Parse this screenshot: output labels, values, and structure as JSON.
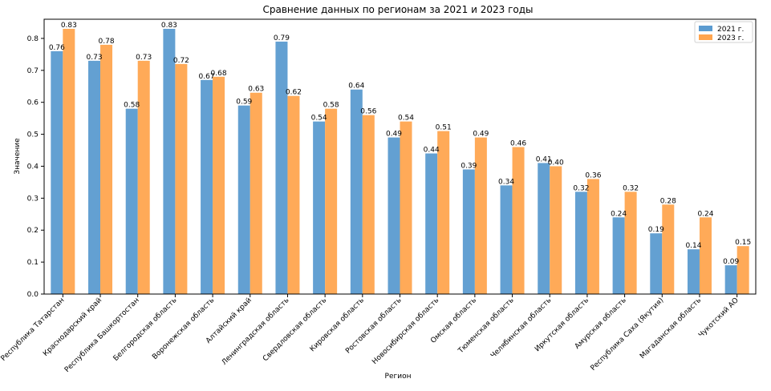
{
  "chart_data": {
    "type": "bar",
    "title": "Сравнение данных по регионам за 2021 и 2023 годы",
    "xlabel": "Регион",
    "ylabel": "Значение",
    "ylim": [
      0,
      0.86
    ],
    "yticks": [
      "0.0",
      "0.1",
      "0.2",
      "0.3",
      "0.4",
      "0.5",
      "0.6",
      "0.7",
      "0.8"
    ],
    "legend_position": "top-right",
    "grid": false,
    "categories": [
      "Республика Татарстан",
      "Краснодарский край",
      "Республика Башкортостан",
      "Белгородская область",
      "Воронежская область",
      "Алтайский край",
      "Ленинградская область",
      "Свердловская область",
      "Кировская область",
      "Ростовская область",
      "Новосибирская область",
      "Омская область",
      "Тюменская область",
      "Челябинская область",
      "Иркутская область",
      "Амурская область",
      "Республика Саха (Якутия)",
      "Магаданская область",
      "Чукотский АО"
    ],
    "series": [
      {
        "name": "2021 г.",
        "color": "#5b9bd0",
        "values": [
          0.76,
          0.73,
          0.58,
          0.83,
          0.67,
          0.59,
          0.79,
          0.54,
          0.64,
          0.49,
          0.44,
          0.39,
          0.34,
          0.41,
          0.32,
          0.24,
          0.19,
          0.14,
          0.09
        ]
      },
      {
        "name": "2023 г.",
        "color": "#ffa54f",
        "values": [
          0.83,
          0.78,
          0.73,
          0.72,
          0.68,
          0.63,
          0.62,
          0.58,
          0.56,
          0.54,
          0.51,
          0.49,
          0.46,
          0.4,
          0.36,
          0.32,
          0.28,
          0.24,
          0.15
        ]
      }
    ]
  }
}
